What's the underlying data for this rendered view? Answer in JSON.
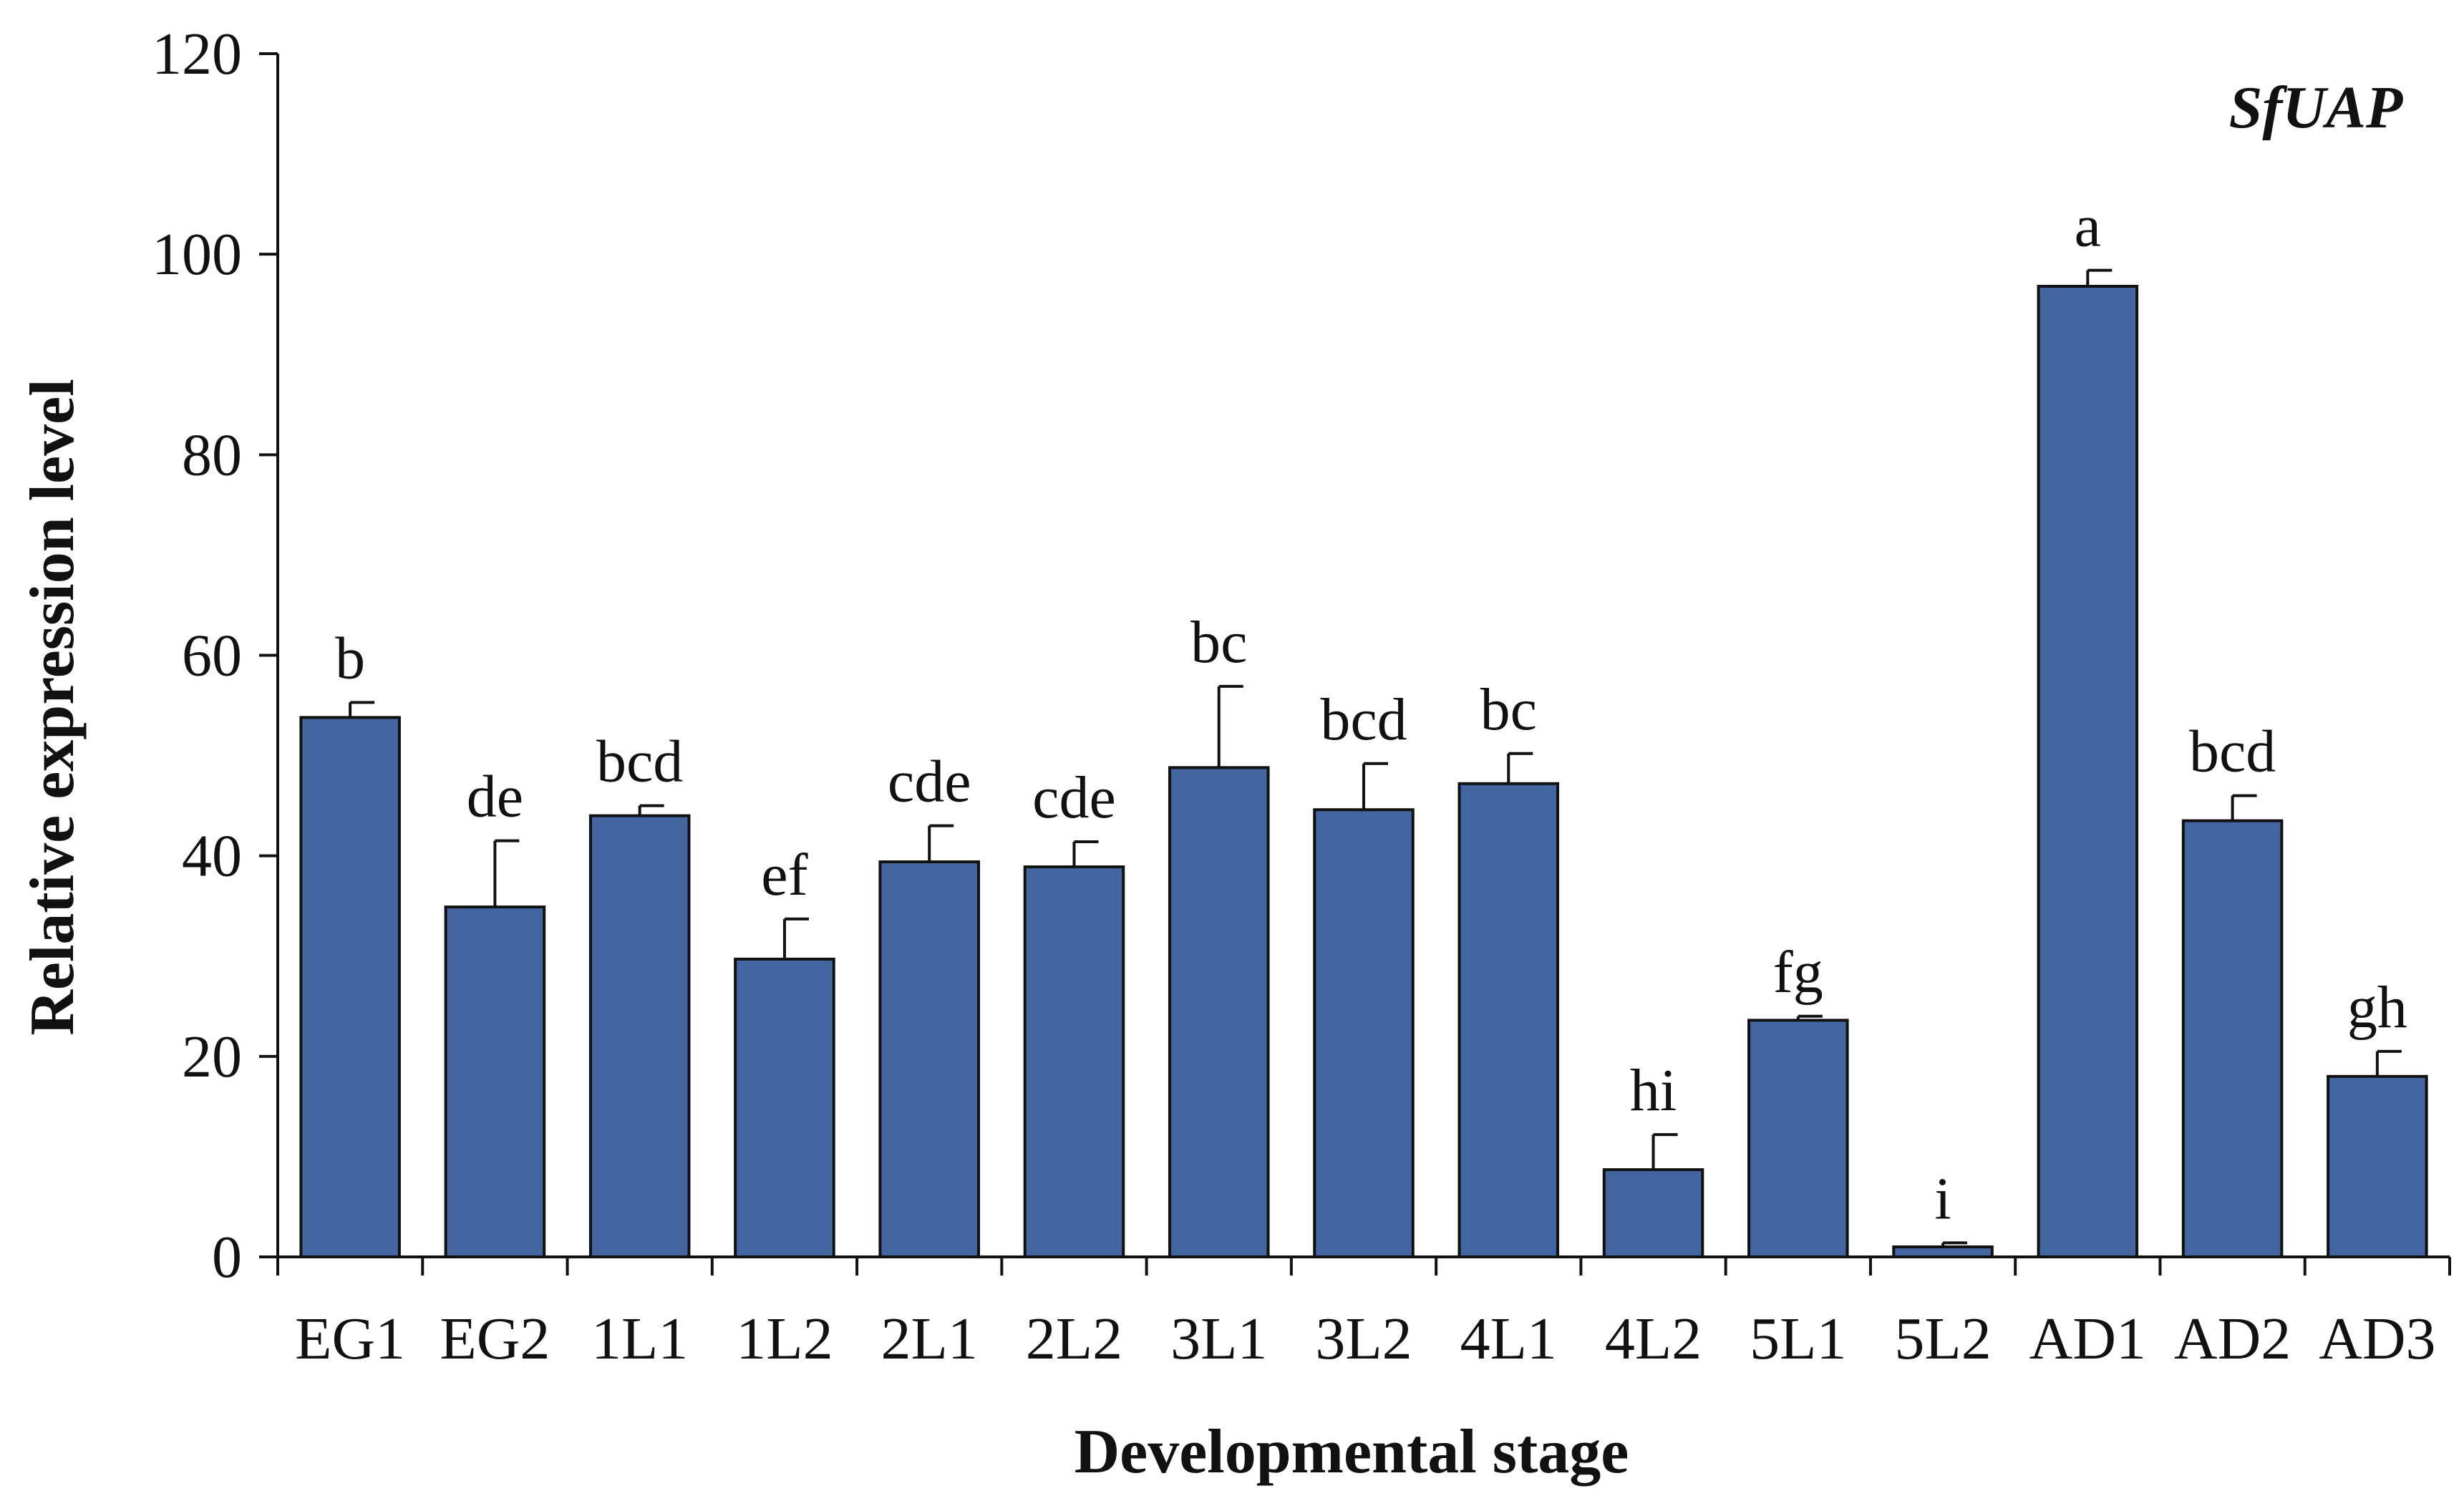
{
  "chart_data": {
    "type": "bar",
    "title": "SfUAP",
    "xlabel": "Developmental stage",
    "ylabel": "Relative expression level",
    "ylim": [
      0,
      120
    ],
    "yticks": [
      0,
      20,
      40,
      60,
      80,
      100,
      120
    ],
    "categories": [
      "EG1",
      "EG2",
      "1L1",
      "1L2",
      "2L1",
      "2L2",
      "3L1",
      "3L2",
      "4L1",
      "4L2",
      "5L1",
      "5L2",
      "AD1",
      "AD2",
      "AD3"
    ],
    "values": [
      53.8,
      34.9,
      44.0,
      29.7,
      39.4,
      38.9,
      48.8,
      44.6,
      47.2,
      8.7,
      23.6,
      1.0,
      96.8,
      43.5,
      18.0
    ],
    "errors": [
      1.5,
      6.6,
      1.0,
      4.0,
      3.6,
      2.5,
      8.1,
      4.6,
      3.0,
      3.5,
      0.4,
      0.4,
      1.6,
      2.5,
      2.5
    ],
    "significance": [
      "b",
      "de",
      "bcd",
      "ef",
      "cde",
      "cde",
      "bc",
      "bcd",
      "bc",
      "hi",
      "fg",
      "i",
      "a",
      "bcd",
      "gh"
    ],
    "bar_color": "#4466a0"
  }
}
